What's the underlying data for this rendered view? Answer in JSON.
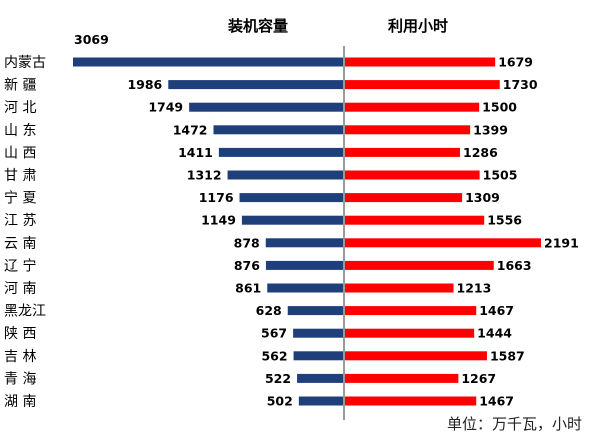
{
  "unit_text": "单位：万千瓦，小时",
  "chart_data": {
    "type": "bar",
    "layout": "butterfly",
    "categories": [
      "内蒙古",
      "新 疆",
      "河 北",
      "山 东",
      "山 西",
      "甘 肃",
      "宁 夏",
      "江 苏",
      "云 南",
      "辽 宁",
      "河 南",
      "黑龙江",
      "陕 西",
      "吉 林",
      "青 海",
      "湖 南"
    ],
    "series": [
      {
        "name": "装机容量",
        "color": "#1f3f7a",
        "values": [
          3069,
          1986,
          1749,
          1472,
          1411,
          1312,
          1176,
          1149,
          878,
          876,
          861,
          628,
          567,
          562,
          522,
          502
        ]
      },
      {
        "name": "利用小时",
        "color": "#ff0000",
        "values": [
          1679,
          1730,
          1500,
          1399,
          1286,
          1505,
          1309,
          1556,
          2191,
          1663,
          1213,
          1467,
          1444,
          1587,
          1267,
          1467
        ]
      }
    ],
    "xlabel": "",
    "ylabel": "",
    "grid": false
  }
}
